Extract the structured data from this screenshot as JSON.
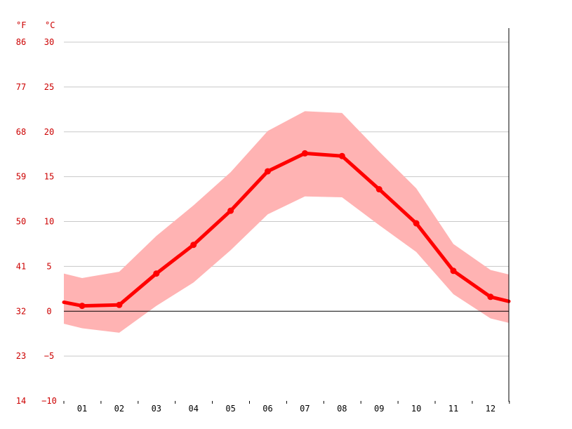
{
  "chart_data": {
    "type": "line",
    "title": "",
    "categories": [
      "01",
      "02",
      "03",
      "04",
      "05",
      "06",
      "07",
      "08",
      "09",
      "10",
      "11",
      "12"
    ],
    "left_axis_unit": "°F",
    "right_axis_unit": "°C",
    "y_ticks_f": [
      "86",
      "77",
      "68",
      "59",
      "50",
      "41",
      "32",
      "23",
      "14"
    ],
    "y_ticks_c": [
      "30",
      "25",
      "20",
      "15",
      "10",
      "5",
      "0",
      "−5",
      "−10"
    ],
    "ylim_c": [
      -10,
      30
    ],
    "grid": true,
    "series": [
      {
        "kind": "mean",
        "values_c": [
          0.6,
          0.7,
          4.2,
          7.4,
          11.2,
          15.6,
          17.6,
          17.3,
          13.6,
          9.8,
          4.5,
          1.6
        ]
      },
      {
        "kind": "band-upper",
        "values_c": [
          3.7,
          4.4,
          8.4,
          11.8,
          15.5,
          20.1,
          22.3,
          22.1,
          17.8,
          13.7,
          7.5,
          4.6
        ]
      },
      {
        "kind": "band-lower",
        "values_c": [
          -1.9,
          -2.4,
          0.6,
          3.2,
          6.8,
          10.8,
          12.8,
          12.7,
          9.6,
          6.6,
          1.9,
          -0.8
        ]
      }
    ],
    "edge_values_c": {
      "mean_left": 1.0,
      "mean_right": 1.1,
      "upper_left": 4.2,
      "upper_right": 4.1,
      "lower_left": -1.4,
      "lower_right": -1.3
    },
    "colors": {
      "line": "#ff0000",
      "band": "#ffb3b3",
      "axis_text": "#cc0000",
      "grid": "#c8c8c8",
      "zero_line": "#000000"
    }
  }
}
